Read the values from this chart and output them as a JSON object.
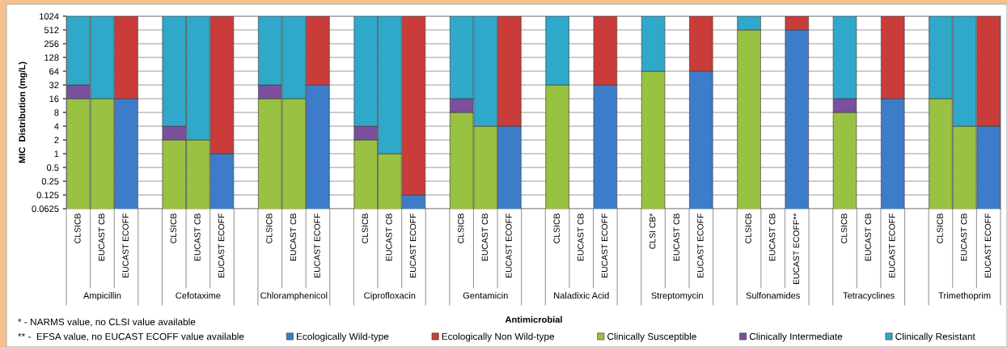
{
  "chart_data": {
    "type": "bar",
    "stacked": true,
    "log": "y",
    "ylabel": "MIC  Distribution (mg/L)",
    "xlabel": "Antimicrobial",
    "categories": [
      "CLSICB",
      "EUCAST CB",
      "EUCAST ECOFF",
      null,
      "CLSICB",
      "EUCAST CB",
      "EUCAST ECOFF",
      null,
      "CLSICB",
      "EUCAST CB",
      "EUCAST ECOFF",
      null,
      "CLSICB",
      "EUCAST CB",
      "EUCAST ECOFF",
      null,
      "CLSICB",
      "EUCAST CB",
      "EUCAST ECOFF",
      null,
      "CLSICB",
      "EUCAST CB",
      "EUCAST ECOFF",
      null,
      "CLSI CB*",
      "EUCAST CB",
      "EUCAST ECOFF",
      null,
      "CLSICB",
      "EUCAST CB",
      "EUCAST ECOFF**",
      null,
      "CLSICB",
      "EUCAST CB",
      "EUCAST ECOFF",
      null,
      "CLSICB",
      "EUCAST CB",
      "EUCAST ECOFF"
    ],
    "series": [
      {
        "name": "Ecologically Wild-type",
        "color": "#3d7cc9",
        "values": [
          null,
          null,
          16,
          null,
          null,
          null,
          1,
          null,
          null,
          null,
          32,
          null,
          null,
          null,
          0.125,
          null,
          null,
          null,
          4,
          null,
          null,
          null,
          32,
          null,
          null,
          null,
          64,
          null,
          null,
          null,
          512,
          null,
          null,
          null,
          16,
          null,
          null,
          null,
          4
        ]
      },
      {
        "name": "Ecologically Non Wild-type",
        "color": "#c93c3a",
        "values": [
          null,
          null,
          1008,
          null,
          null,
          null,
          1023,
          null,
          null,
          null,
          992,
          null,
          null,
          null,
          1023.875,
          null,
          null,
          null,
          1020,
          null,
          null,
          null,
          992,
          null,
          null,
          null,
          960,
          null,
          null,
          null,
          512,
          null,
          null,
          null,
          1008,
          null,
          null,
          null,
          1020
        ]
      },
      {
        "name": "Clinically Susceptible",
        "color": "#99c142",
        "values": [
          16,
          16,
          null,
          null,
          2,
          2,
          null,
          null,
          16,
          16,
          null,
          null,
          2,
          1,
          null,
          null,
          8,
          4,
          null,
          null,
          32,
          null,
          null,
          null,
          64,
          null,
          null,
          null,
          512,
          null,
          null,
          null,
          8,
          null,
          null,
          null,
          16,
          4,
          null
        ]
      },
      {
        "name": "Clinically Intermediate",
        "color": "#7b4f9e",
        "values": [
          16,
          null,
          null,
          null,
          2,
          null,
          null,
          null,
          16,
          null,
          null,
          null,
          2,
          null,
          null,
          null,
          8,
          null,
          null,
          null,
          null,
          null,
          null,
          null,
          null,
          null,
          null,
          null,
          null,
          null,
          null,
          null,
          8,
          null,
          null,
          null,
          null,
          null,
          null
        ]
      },
      {
        "name": "Clinically Resistant",
        "color": "#2fa8c9",
        "values": [
          992,
          1008,
          null,
          null,
          1020,
          1022,
          null,
          null,
          992,
          1008,
          null,
          null,
          1020,
          1023,
          null,
          null,
          1008,
          1020,
          null,
          null,
          992,
          null,
          null,
          null,
          960,
          null,
          null,
          null,
          512,
          null,
          null,
          null,
          1008,
          null,
          null,
          null,
          1008,
          1020,
          null
        ]
      }
    ],
    "ylim": [
      0.0625,
      1024
    ],
    "yticks": [
      0.0625,
      0.125,
      0.25,
      0.5,
      1,
      2,
      4,
      8,
      16,
      32,
      64,
      128,
      256,
      512,
      1024
    ],
    "grid": "y",
    "legend": "bottom",
    "annotations": [
      "Ampicillin",
      "Cefotaxime",
      "Chloramphenicol",
      "Ciprofloxacin",
      "Gentamicin",
      "Naladixic Acid",
      "Streptomycin",
      "Sulfonamides",
      "Tetracyclines",
      "Trimethoprim",
      "* - NARMS value, no CLSI value available",
      "** -  EFSA value, no EUCAST ECOFF value available"
    ]
  }
}
